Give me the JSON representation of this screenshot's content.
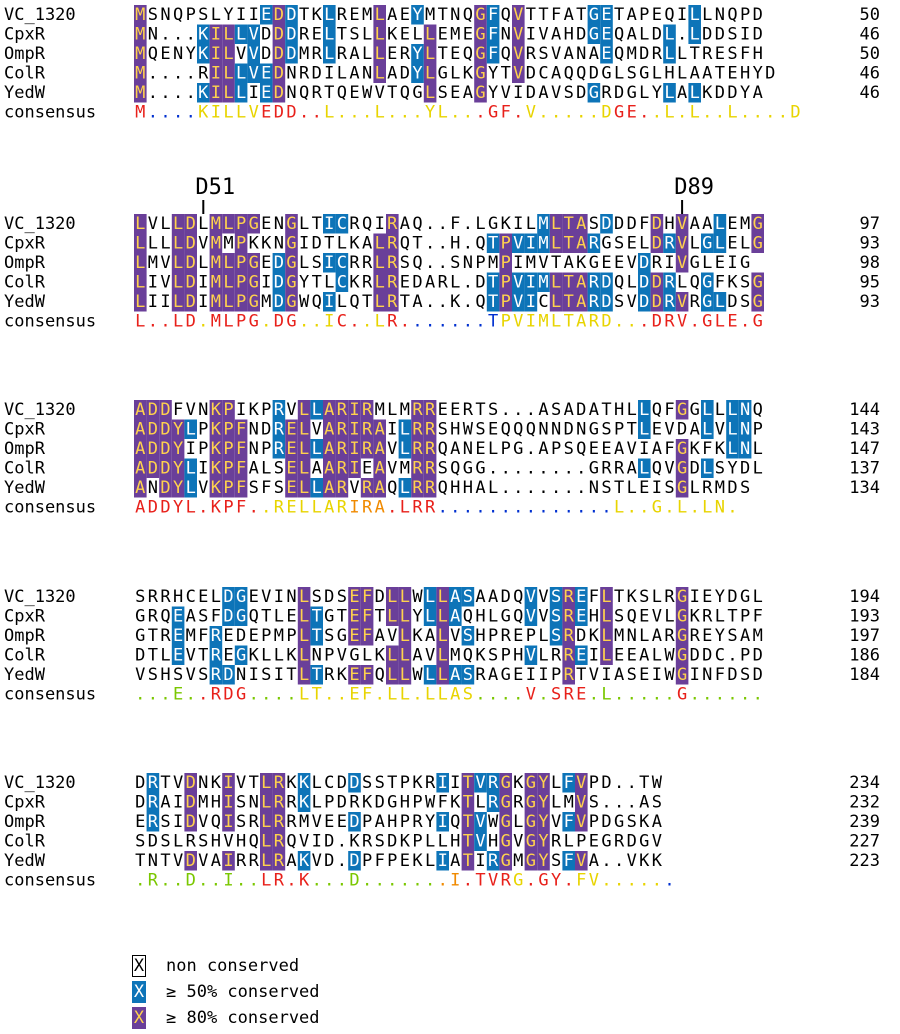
{
  "colors": {
    "c50": "#0d74b8",
    "c80": "#6a3f99",
    "residue_on_50": "#ffffff",
    "residue_on_80": "#ffd24d",
    "residue_plain": "#000000",
    "consensus_palette": {
      "r": "#e8201a",
      "o": "#f08a00",
      "y": "#e8d400",
      "g": "#7ac700",
      "b": "#0030d0"
    }
  },
  "names": [
    "VC_1320",
    "CpxR",
    "OmpR",
    "ColR",
    "YedW"
  ],
  "consensus_label": "consensus",
  "markers": [
    {
      "label": "D51",
      "block": 1,
      "column": 6
    },
    {
      "label": "D89",
      "block": 1,
      "column": 44
    }
  ],
  "blocks": [
    {
      "rows": [
        {
          "seq": "MSNQPSLYIIEDDTKLREMLAEYMTNQGFQVTTFATGETAPEQILLNQPD",
          "cons": "5000000000005500050005050000050500000505000000000500",
          "end": "50"
        },
        {
          "seq": "MN...KILLVDDDRELTSLLKELLEMEGFNVIVAHDGEQALDL.LDDSID",
          "cons": "5000055555555000000000005555000000005500055000000",
          "end": "46"
        },
        {
          "seq": "MQENYKILVVDDDMRLRALLERYLTEQGFQVRSVANAEQMDRLLTRESFH",
          "cons": "5000050000050000000050500005050000000000005000000",
          "end": "50"
        },
        {
          "seq": "M....RILLVEDNRDILANLADYLGLKGYTVDCAQQDGLSGLHLAATEHYD",
          "cons": "5000000500000000000000550005050000005500050500000005",
          "end": "46"
        },
        {
          "seq": "M....KILLIEDNQRTQEWVTQGLSEAGYVIDAVSDGRDGLYLALKDDYA",
          "cons": "50000555505500000000005000500000000500000505000000",
          "end": "46"
        }
      ],
      "consensus": "M....KILLVEDD..L...L...YL...GF.V.....DGE..L.L..L....D",
      "consensus_colors": "rbbbbyyyyyrrrrryyyyyyyyyyyyrrrryyyyyyyrrryyyyyyyyyyyyg"
    },
    {
      "rows": [
        {
          "seq": "LVLLDLMLPGENGLTICRQIRAQ..F.LGKILMLTASDDDFDHVAALEMG",
          "cons": "8058888880088005580580000000008888050088080888",
          "end": "97"
        },
        {
          "seq": "LLLLDVMMPKKNGIDTLKALRQT..H.QTPVIMLTARGSELDRVLGLELG",
          "cons": "8888888880008008000580000000555558888000880808808",
          "end": "93"
        },
        {
          "seq": "LMVLDLMLPGEDGLSICRRLRSQ..SNPMPIMVTAKGEEVDRIVGLEIG",
          "cons": "88888888888888858558850000000588800800088800880808",
          "end": "98"
        },
        {
          "seq": "LIVLDIMLPGIDGYTLCKRLREDARL.DTPVIMLTARDQLDDRLQGFKSG",
          "cons": "888888888808800580580000005555588888800888008",
          "end": "95"
        },
        {
          "seq": "LIILDIMLPGMDGWQILQTLRTA..K.QTPVICLTARDSVDDRVRGLDSG",
          "cons": "888888888808800588058000000555558888800888808",
          "end": "93"
        }
      ],
      "consensus": "L..LD.MLPG.DG..IC..LR.......TPVIMLTARD...DRV.GLE.G",
      "consensus_colors": "rrrrryrrrryrryyyrryyrrbbbbbbbyyyyyyyyyyyrrrrrrrrrrr"
    },
    {
      "rows": [
        {
          "seq": "ADDFVNKPIKPRVLLARIRMLMRREERTS...ASADATHLLQFGGLLLNQ",
          "end": "144"
        },
        {
          "seq": "ADDYLPKPFNDRELVARIRAILRRSHWSEQQQNNDNGSPTLEVDALVLNP",
          "end": "143"
        },
        {
          "seq": "ADDYIPKPFNPRELLARIRAVLRRQANELPG.APSQEEAVIAFGKFKLNL",
          "end": "147"
        },
        {
          "seq": "ADDYLIKPFALSELAARIEAVMRRSQGG........GRRALQVGDLSYDL",
          "end": "137"
        },
        {
          "seq": "ANDYLVKPFSFSELLARVRAQLRRQHHAL.......NSTLEISGLRMDS",
          "end": "134"
        }
      ],
      "consensus": "ADDYL.KPF..RELLARIRA.LRR..............L..G.L.LN.",
      "consensus_colors": "rrrrrrrrrryyyyyyyooorrrrbbbbbbbbbbbbbbyyyyyyyyyyy"
    },
    {
      "rows": [
        {
          "seq": "SRRHCELDGEVINLSDSEFDLLWLLASAADQVVSREFLTKSLRGIEYDGL",
          "end": "194"
        },
        {
          "seq": "GRQEASFDGQTLELTGTEFTLLYLLAQHLGQVVSREHLSQEVLGKRLTPF",
          "end": "193"
        },
        {
          "seq": "GTREMFREDEPMPLTSGEFAVLKALVSHPREPLSRDKLMNLARGREYSAM",
          "end": "197"
        },
        {
          "seq": "DTLEVTREGKLLKLNPVGLKLLAVLMQKSPHVLRREILEEALWGDDC.PD",
          "end": "186"
        },
        {
          "seq": "VSHSVSRDNISITLTRKEFQLLWLLASRAGEIIPRTVIASEIWGINFDSD",
          "end": "184"
        }
      ],
      "consensus": "...E..RDG....LT..EF.LL.LLAS....V.SRE.L.....G......",
      "consensus_colors": "gggggrrrrggggyyyyyyyyyyyyyyggggrgrrrgggggggrgggggg"
    },
    {
      "rows": [
        {
          "seq": "DRTVDNKIVTLRKKLCDDSSTPKRIITVRGKGYLFVPD..TW",
          "end": "234"
        },
        {
          "seq": "DRAIDMHISNLRRKLPDRKDGHPWFKTLRGRGYLMVS...AS",
          "end": "232"
        },
        {
          "seq": "ERSIDVQISRLRRMVEEDPAHPRYIQTVWGLGYVFVPDGSKA",
          "end": "239"
        },
        {
          "seq": "SDSLRSHVHQLRQVID.KRSDKPLLHTVHGVGYRLPEGRDGV",
          "end": "227"
        },
        {
          "seq": "TNTVDVAIRRLRAKVD.DPFPEKLIATIRGMGYSFVA..VKK",
          "end": "223"
        }
      ],
      "consensus": ".R..D..I..LR.K...D.......I.TVRG.GY.FV......",
      "consensus_colors": "ggggggggggrrrrggggggggggoorrrryrrrryyyyyyybbb"
    }
  ],
  "legend": [
    {
      "box": "X",
      "label": "non conserved"
    },
    {
      "box": "X",
      "label": "≥ 50% conserved"
    },
    {
      "box": "X",
      "label": "≥ 80% conserved"
    }
  ]
}
